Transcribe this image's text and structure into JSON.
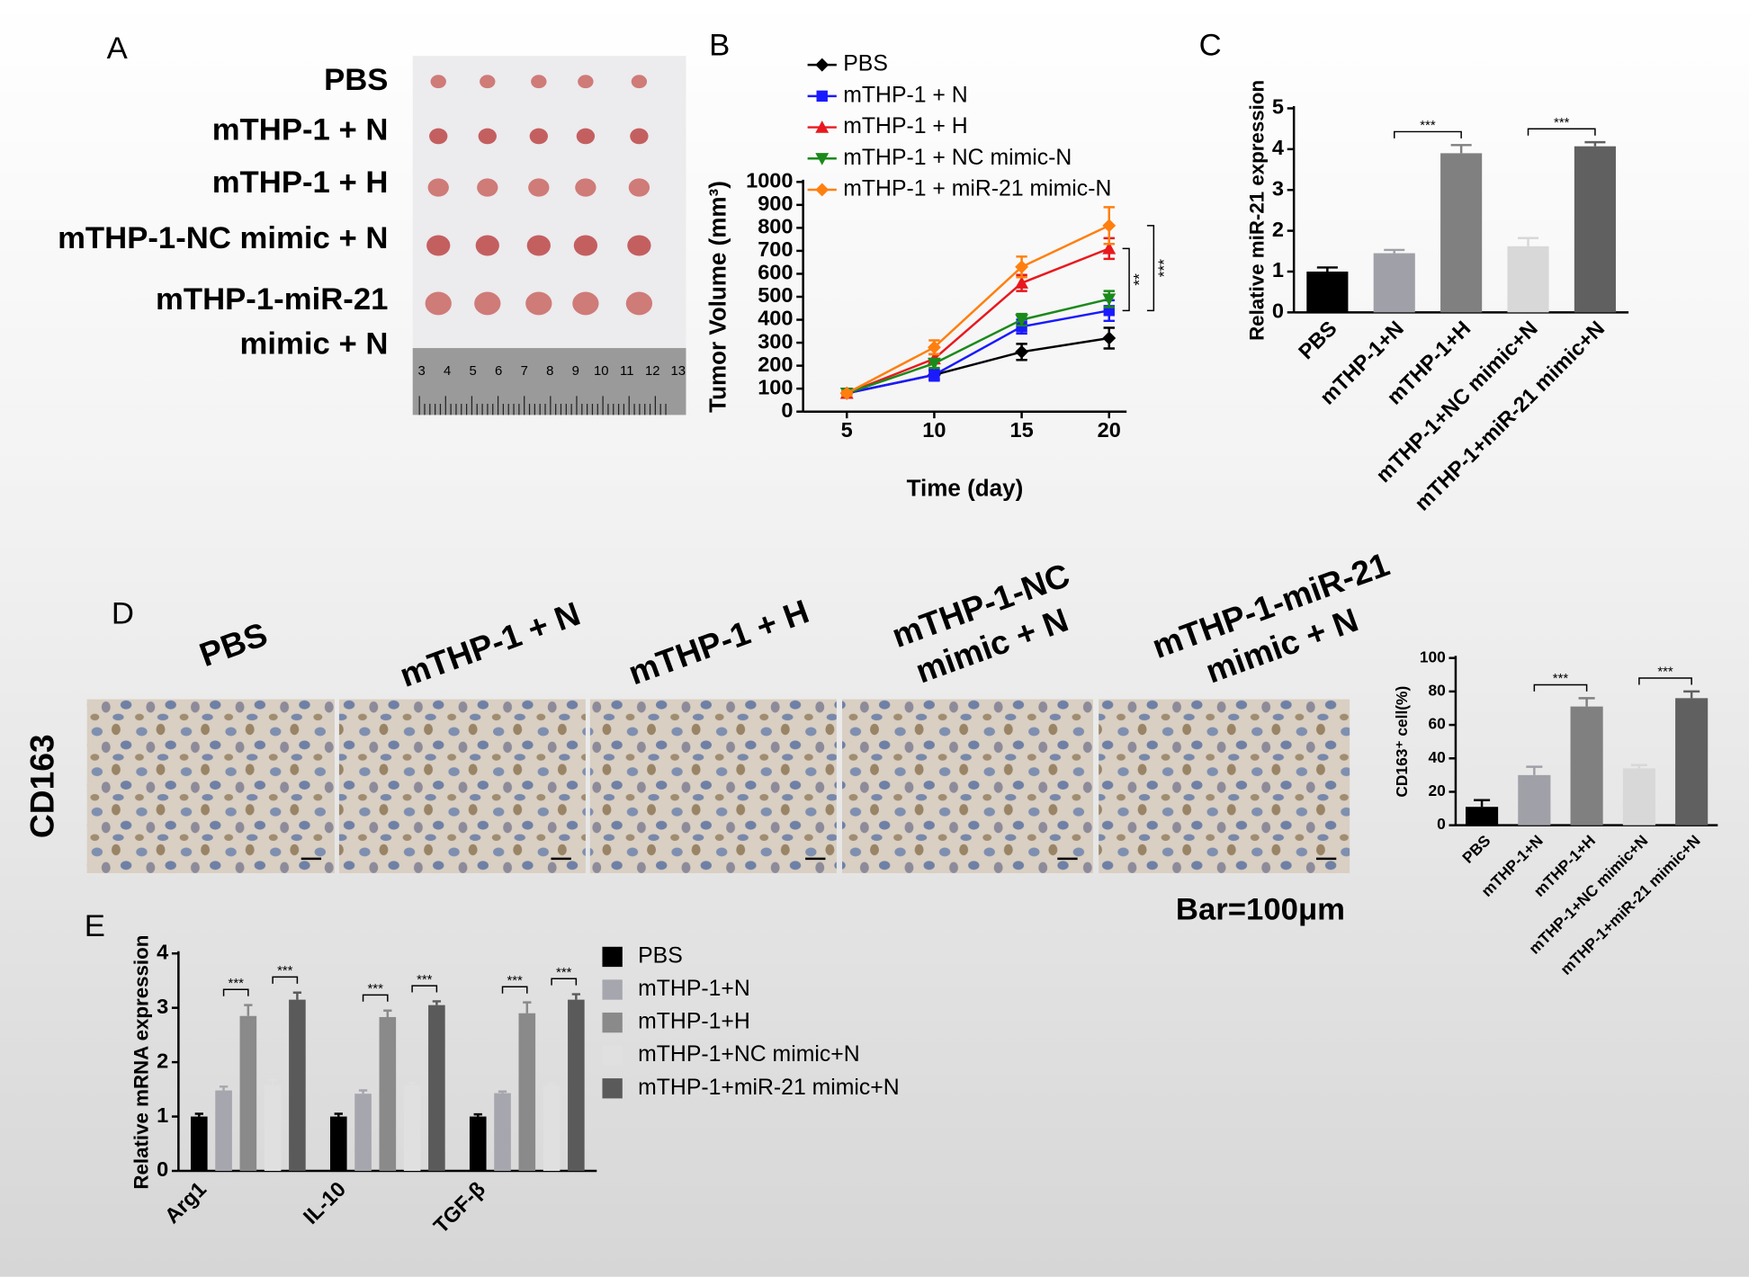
{
  "panel_labels": [
    "A",
    "B",
    "C",
    "D",
    "E"
  ],
  "panel_a": {
    "rows": [
      [
        "PBS"
      ],
      [
        "mTHP-1 + N"
      ],
      [
        "mTHP-1 + H"
      ],
      [
        "mTHP-1-NC mimic + N"
      ],
      [
        "mTHP-1-miR-21",
        "mimic + N"
      ]
    ],
    "ruler": [
      3,
      4,
      5,
      6,
      7,
      8,
      9,
      10,
      11,
      12,
      13
    ]
  },
  "panel_d": {
    "columns": [
      [
        "PBS"
      ],
      [
        "mTHP-1 + N"
      ],
      [
        "mTHP-1 + H"
      ],
      [
        "mTHP-1-NC",
        "mimic + N"
      ],
      [
        "mTHP-1-miR-21",
        "mimic + N"
      ]
    ],
    "row_label": "CD163",
    "scale_bar": "Bar=100μm"
  },
  "chart_data": [
    {
      "type": "line",
      "x": [
        5,
        10,
        15,
        20
      ],
      "xlim": [
        2.5,
        21
      ],
      "xticks": [
        5,
        10,
        15,
        20
      ],
      "xlabel": "Time (day)",
      "ylabel": "Tumor Volume (mm³)",
      "ylim": [
        0,
        1000
      ],
      "yticks": [
        0,
        100,
        200,
        300,
        400,
        500,
        600,
        700,
        800,
        900,
        1000
      ],
      "series": [
        {
          "name": "PBS",
          "color": "#000000",
          "marker": "diamond",
          "values": [
            80,
            160,
            260,
            320
          ],
          "errors": [
            10,
            20,
            35,
            45
          ]
        },
        {
          "name": "mTHP-1 + N",
          "color": "#1a1aff",
          "marker": "square",
          "values": [
            80,
            160,
            370,
            440
          ],
          "errors": [
            10,
            25,
            30,
            45
          ]
        },
        {
          "name": "mTHP-1 + H",
          "color": "#e8191e",
          "marker": "triangle-up",
          "values": [
            80,
            230,
            560,
            710
          ],
          "errors": [
            10,
            20,
            35,
            45
          ]
        },
        {
          "name": "mTHP-1 + NC mimic-N",
          "color": "#1a8a1a",
          "marker": "triangle-down",
          "values": [
            80,
            210,
            400,
            490
          ],
          "errors": [
            10,
            20,
            25,
            35
          ]
        },
        {
          "name": "mTHP-1 + miR-21 mimic-N",
          "color": "#ff7f0e",
          "marker": "diamond",
          "values": [
            80,
            280,
            630,
            810
          ],
          "errors": [
            10,
            30,
            45,
            80
          ]
        }
      ],
      "annotations": [
        "**",
        "***"
      ]
    },
    {
      "type": "bar",
      "categories": [
        "PBS",
        "mTHP-1+N",
        "mTHP-1+H",
        "mTHP-1+NC mimic+N",
        "mTHP-1+miR-21 mimic+N"
      ],
      "values": [
        1.0,
        1.45,
        3.9,
        1.62,
        4.07
      ],
      "errors": [
        0.1,
        0.08,
        0.2,
        0.2,
        0.1
      ],
      "colors": [
        "#000000",
        "#a0a0a8",
        "#808080",
        "#d8d8d8",
        "#606060"
      ],
      "ylabel": "Relative miR-21 expression",
      "ylim": [
        0,
        5
      ],
      "yticks": [
        0,
        1,
        2,
        3,
        4,
        5
      ],
      "annotations": [
        "***",
        "***"
      ]
    },
    {
      "type": "bar",
      "categories": [
        "PBS",
        "mTHP-1+N",
        "mTHP-1+H",
        "mTHP-1+NC mimic+N",
        "mTHP-1+miR-21 mimic+N"
      ],
      "values": [
        11,
        30,
        71,
        34,
        76
      ],
      "errors": [
        4,
        5,
        5,
        2,
        4
      ],
      "colors": [
        "#000000",
        "#a0a0a8",
        "#808080",
        "#d8d8d8",
        "#606060"
      ],
      "ylabel": "CD163⁺ cell(%)",
      "ylim": [
        0,
        100
      ],
      "yticks": [
        0,
        20,
        40,
        60,
        80,
        100
      ],
      "annotations": [
        "***",
        "***"
      ]
    },
    {
      "type": "bar",
      "categories": [
        "Arg1",
        "IL-10",
        "TGF-β"
      ],
      "series": [
        {
          "name": "PBS",
          "color": "#000000",
          "values": [
            1.0,
            1.0,
            1.0
          ],
          "errors": [
            0.05,
            0.05,
            0.04
          ]
        },
        {
          "name": "mTHP-1+N",
          "color": "#a6a6ae",
          "values": [
            1.48,
            1.42,
            1.43
          ],
          "errors": [
            0.07,
            0.06,
            0.03
          ]
        },
        {
          "name": "mTHP-1+H",
          "color": "#8a8a8a",
          "values": [
            2.85,
            2.83,
            2.9
          ],
          "errors": [
            0.2,
            0.12,
            0.2
          ]
        },
        {
          "name": "mTHP-1+NC mimic+N",
          "color": "#e0e0e0",
          "values": [
            1.58,
            1.57,
            1.58
          ],
          "errors": [
            0.1,
            0.05,
            0.03
          ]
        },
        {
          "name": "mTHP-1+miR-21 mimic+N",
          "color": "#5a5a5a",
          "values": [
            3.15,
            3.05,
            3.15
          ],
          "errors": [
            0.13,
            0.07,
            0.1
          ]
        }
      ],
      "ylabel": "Relative mRNA expression",
      "ylim": [
        0,
        4
      ],
      "yticks": [
        0,
        1,
        2,
        3,
        4
      ],
      "annotations": [
        "***",
        "***",
        "***",
        "***",
        "***",
        "***"
      ]
    }
  ]
}
